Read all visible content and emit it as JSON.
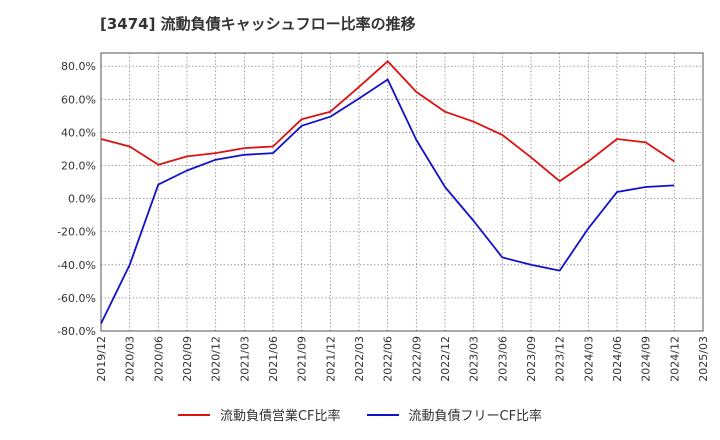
{
  "title": "[3474]  流動負債キャッシュフロー比率の推移",
  "colors": {
    "operating": "#dd1111",
    "free": "#1111cc",
    "grid": "#888888",
    "axis": "#000000",
    "text": "#333333"
  },
  "chart_data": {
    "type": "line",
    "y_tick_labels": [
      "80.0%",
      "60.0%",
      "40.0%",
      "20.0%",
      "0.0%",
      "-20.0%",
      "-40.0%",
      "-60.0%",
      "-80.0%"
    ],
    "y_ticks": [
      80,
      60,
      40,
      20,
      0,
      -20,
      -40,
      -60,
      -80
    ],
    "ylim": [
      -80,
      88
    ],
    "x_tick_labels": [
      "2019/12",
      "2020/03",
      "2020/06",
      "2020/09",
      "2020/12",
      "2021/03",
      "2021/06",
      "2021/09",
      "2021/12",
      "2022/03",
      "2022/06",
      "2022/09",
      "2022/12",
      "2023/03",
      "2023/06",
      "2023/09",
      "2023/12",
      "2024/03",
      "2024/06",
      "2024/09",
      "2024/12",
      "2025/03"
    ],
    "grid": true,
    "legend_position": "bottom",
    "series": [
      {
        "name": "流動負債営業CF比率",
        "key": "operating",
        "values": [
          36,
          31.5,
          20.5,
          25.5,
          27.5,
          30.5,
          31.5,
          48,
          52.5,
          67.5,
          83,
          64.5,
          52.5,
          46.5,
          38.5,
          25,
          10.5,
          22.5,
          36,
          34,
          22.5,
          null
        ]
      },
      {
        "name": "流動負債フリーCF比率",
        "key": "free",
        "values": [
          -75.5,
          -40,
          8.5,
          17,
          23.5,
          26.5,
          27.5,
          44,
          49.5,
          60.5,
          72,
          35.5,
          7,
          -13.5,
          -35.5,
          -40,
          -43.5,
          -18,
          4,
          7,
          8,
          null
        ]
      }
    ]
  }
}
